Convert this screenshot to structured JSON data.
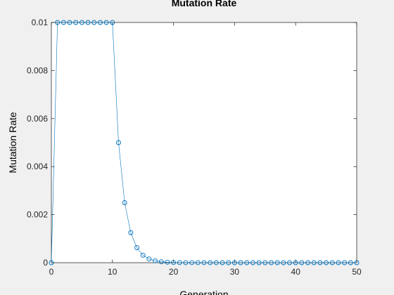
{
  "chart_data": {
    "type": "line",
    "title": "Mutation Rate",
    "xlabel": "Generation",
    "ylabel": "Mutation Rate",
    "xlim": [
      0,
      50
    ],
    "ylim": [
      0,
      0.01
    ],
    "x_ticks": [
      "0",
      "10",
      "20",
      "30",
      "40",
      "50"
    ],
    "y_ticks": [
      "0",
      "0.002",
      "0.004",
      "0.006",
      "0.008",
      "0.01"
    ],
    "grid": false,
    "marker": "circle",
    "series": [
      {
        "color": "#0072bd",
        "x": [
          0,
          1,
          2,
          3,
          4,
          5,
          6,
          7,
          8,
          9,
          10,
          11,
          12,
          13,
          14,
          15,
          16,
          17,
          18,
          19,
          20,
          21,
          22,
          23,
          24,
          25,
          26,
          27,
          28,
          29,
          30,
          31,
          32,
          33,
          34,
          35,
          36,
          37,
          38,
          39,
          40,
          41,
          42,
          43,
          44,
          45,
          46,
          47,
          48,
          49,
          50
        ],
        "y": [
          0,
          0.01,
          0.01,
          0.01,
          0.01,
          0.01,
          0.01,
          0.01,
          0.01,
          0.01,
          0.01,
          0.005,
          0.0025,
          0.00125,
          0.000625,
          0.0003125,
          0.00015625,
          7.8e-05,
          3.9e-05,
          1.95e-05,
          9.8e-06,
          4.9e-06,
          2.4e-06,
          1.2e-06,
          6e-07,
          3e-07,
          1.5e-07,
          8e-08,
          4e-08,
          2e-08,
          1e-08,
          0,
          0,
          0,
          0,
          0,
          0,
          0,
          0,
          0,
          0,
          0,
          0,
          0,
          0,
          0,
          0,
          0,
          0,
          0,
          0
        ]
      }
    ]
  }
}
